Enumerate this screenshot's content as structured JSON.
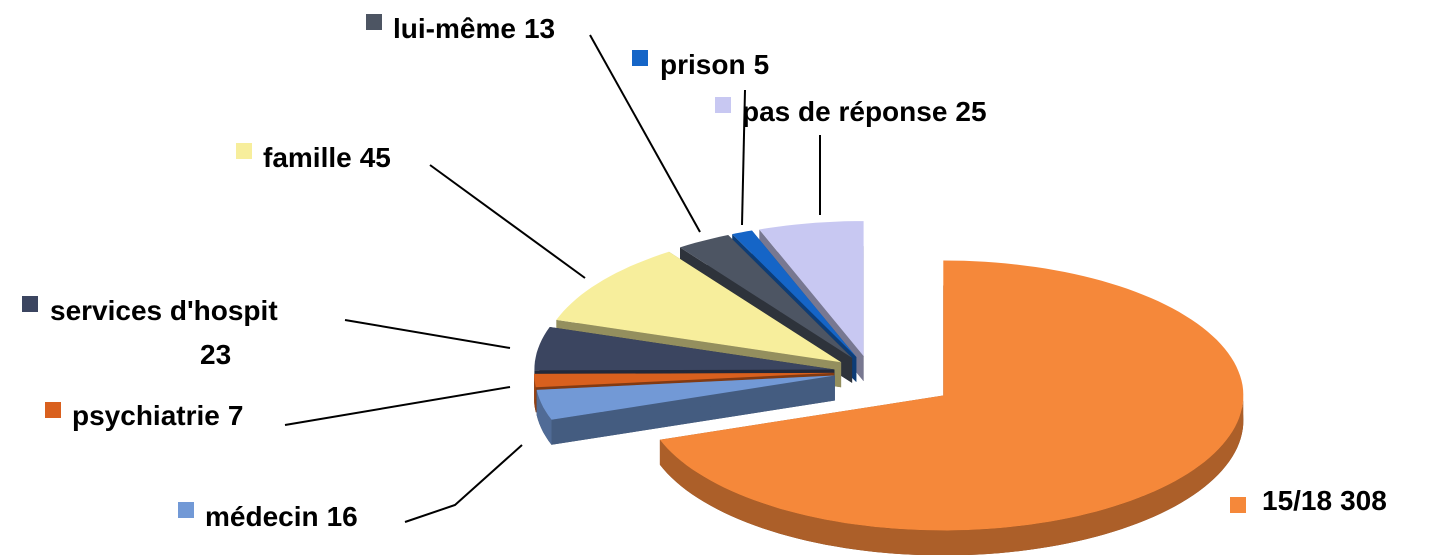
{
  "chart_data": {
    "type": "pie",
    "categories": [
      "15/18",
      "médecin",
      "psychiatrie",
      "services d'hospit",
      "famille",
      "lui-même",
      "prison",
      "pas de réponse"
    ],
    "values": [
      308,
      16,
      7,
      23,
      45,
      13,
      5,
      25
    ],
    "colors": [
      "#f5883a",
      "#7299d6",
      "#d9601e",
      "#3b4560",
      "#f7ee9c",
      "#4d5563",
      "#1565c7",
      "#c8c8f2"
    ]
  }
}
